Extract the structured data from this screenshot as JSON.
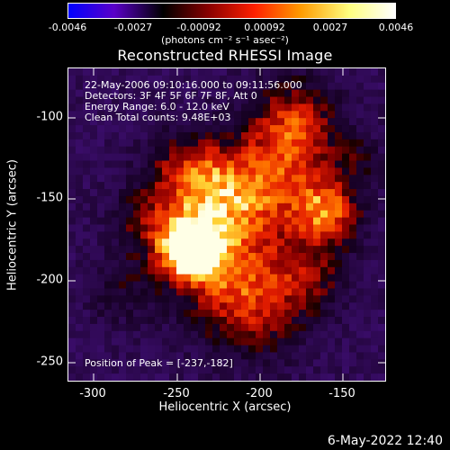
{
  "colorbar": {
    "ticks": [
      "-0.0046",
      "-0.0027",
      "-0.00092",
      "0.00092",
      "0.0027",
      "0.0046"
    ],
    "unit": "(photons cm⁻² s⁻¹ asec⁻²)",
    "colors": [
      "#0000ff",
      "#5a00c8",
      "#000000",
      "#8a0000",
      "#ff2000",
      "#ff9a00",
      "#ffff80",
      "#ffffff"
    ]
  },
  "title": "Reconstructed RHESSI Image",
  "info": {
    "line1": "22-May-2006 09:10:16.000 to 09:11:56.000",
    "line2": "Detectors: 3F 4F 5F 6F 7F 8F, Att 0",
    "line3": "Energy Range: 6.0 - 12.0 keV",
    "line4": "Clean     Total counts: 9.48E+03",
    "peak": "Position of Peak = [-237,-182]"
  },
  "axes": {
    "xlabel": "Heliocentric X (arcsec)",
    "ylabel": "Heliocentric Y (arcsec)",
    "xticks": [
      "-300",
      "-250",
      "-200",
      "-150"
    ],
    "yticks": [
      "-100",
      "-150",
      "-200",
      "-250"
    ],
    "x_range": [
      -315,
      -125
    ],
    "y_range": [
      -75,
      -262
    ]
  },
  "footer": "6-May-2022 12:40"
}
